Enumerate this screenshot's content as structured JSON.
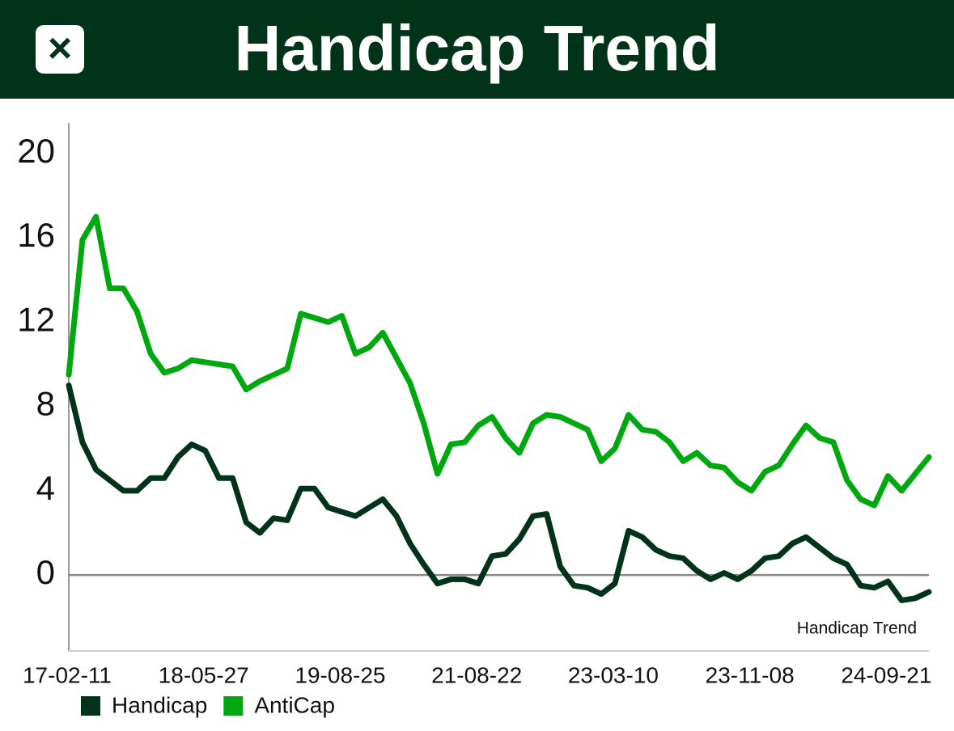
{
  "header": {
    "title": "Handicap Trend",
    "close_icon": "×"
  },
  "chart_data": {
    "type": "line",
    "annotation": "Handicap Trend",
    "categories": [
      "17-02-11",
      null,
      null,
      null,
      null,
      null,
      null,
      null,
      null,
      null,
      "18-05-27",
      null,
      null,
      null,
      null,
      null,
      null,
      null,
      null,
      null,
      "19-08-25",
      null,
      null,
      null,
      null,
      null,
      null,
      null,
      null,
      null,
      "21-08-22",
      null,
      null,
      null,
      null,
      null,
      null,
      null,
      null,
      null,
      "23-03-10",
      null,
      null,
      null,
      null,
      null,
      null,
      null,
      null,
      null,
      "23-11-08",
      null,
      null,
      null,
      null,
      null,
      null,
      null,
      null,
      null,
      "24-09-21",
      null,
      null,
      null
    ],
    "series": [
      {
        "name": "Handicap",
        "color": "#00331a",
        "values": [
          9.0,
          6.3,
          5.0,
          4.5,
          4.0,
          4.0,
          4.6,
          4.6,
          5.6,
          6.2,
          5.9,
          4.6,
          4.6,
          2.5,
          2.0,
          2.7,
          2.6,
          4.1,
          4.1,
          3.2,
          3.0,
          2.8,
          3.2,
          3.6,
          2.8,
          1.5,
          0.5,
          -0.4,
          -0.2,
          -0.2,
          -0.4,
          0.9,
          1.0,
          1.7,
          2.8,
          2.9,
          0.4,
          -0.5,
          -0.6,
          -0.9,
          -0.4,
          2.1,
          1.8,
          1.2,
          0.9,
          0.8,
          0.2,
          -0.2,
          0.1,
          -0.2,
          0.2,
          0.8,
          0.9,
          1.5,
          1.8,
          1.3,
          0.8,
          0.5,
          -0.5,
          -0.6,
          -0.3,
          -1.2,
          -1.1,
          -0.8
        ]
      },
      {
        "name": "AntiCap",
        "color": "#00a80f",
        "values": [
          9.5,
          15.9,
          17.0,
          13.6,
          13.6,
          12.5,
          10.5,
          9.6,
          9.8,
          10.2,
          10.1,
          10.0,
          9.9,
          8.8,
          9.2,
          9.5,
          9.8,
          12.4,
          12.2,
          12.0,
          12.3,
          10.5,
          10.8,
          11.5,
          10.3,
          9.1,
          7.2,
          4.8,
          6.2,
          6.3,
          7.1,
          7.5,
          6.5,
          5.8,
          7.2,
          7.6,
          7.5,
          7.2,
          6.9,
          5.4,
          6.0,
          7.6,
          6.9,
          6.8,
          6.3,
          5.4,
          5.8,
          5.2,
          5.1,
          4.4,
          4.0,
          4.9,
          5.2,
          6.2,
          7.1,
          6.5,
          6.3,
          4.5,
          3.6,
          3.3,
          4.7,
          4.0,
          4.8,
          5.6
        ]
      }
    ],
    "ylim": [
      -3.6,
      21.45
    ],
    "yticks": [
      0,
      4,
      8,
      12,
      16,
      20
    ],
    "zero_line": true,
    "legend": "bottom-left"
  }
}
